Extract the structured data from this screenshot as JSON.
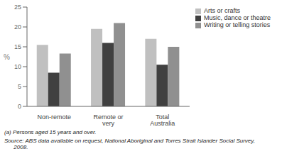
{
  "chart_data": {
    "type": "bar",
    "categories": [
      "Non-remote",
      "Remote or very remote",
      "Total Australia"
    ],
    "series": [
      {
        "name": "Arts or crafts",
        "color": "#c0c0c0",
        "values": [
          15.5,
          19.5,
          17.0
        ]
      },
      {
        "name": "Music, dance or theatre",
        "color": "#404040",
        "values": [
          8.5,
          16.0,
          10.5
        ]
      },
      {
        "name": "Writing or telling stories",
        "color": "#909090",
        "values": [
          13.3,
          21.0,
          15.0
        ]
      }
    ],
    "ylabel": "%",
    "ylim": [
      0,
      25
    ],
    "yticks": [
      0,
      5,
      10,
      15,
      20,
      25
    ],
    "grid": false,
    "legend": "upper right",
    "annotations": [
      "(a) Persons aged 15 years and over.",
      "Source: ABS data available on request, National Aboriginal and Torres Strait Islander Social Survey,\n      2008."
    ]
  }
}
